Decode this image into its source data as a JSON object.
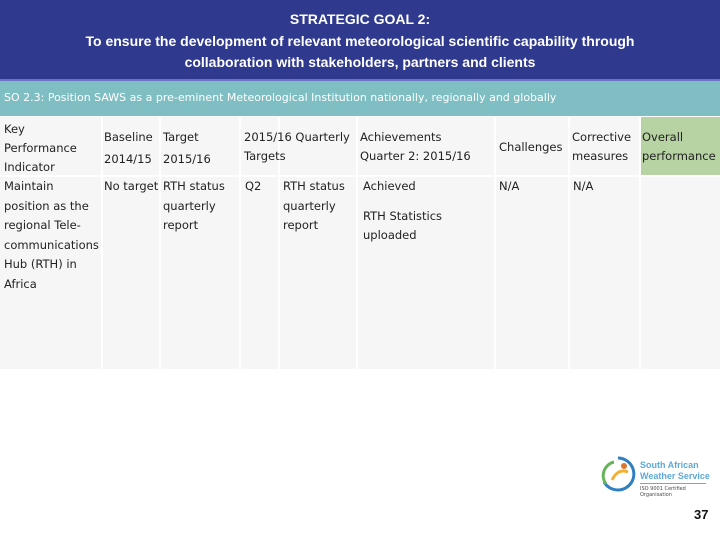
{
  "header": {
    "title_line1": "STRATEGIC GOAL 2:",
    "title_line2": "To ensure the development of relevant meteorological scientific capability through",
    "title_line3": "collaboration with stakeholders, partners and clients"
  },
  "so_bar": {
    "text": "SO 2.3:  Position SAWS as a pre-eminent Meteorological Institution nationally, regionally and globally"
  },
  "table": {
    "headers": {
      "kpi": [
        "Key",
        "Performance",
        "Indicator"
      ],
      "baseline": [
        "Baseline",
        "2014/15"
      ],
      "target": [
        "Target",
        "2015/16"
      ],
      "quarterly_targets": [
        "2015/16 Quarterly",
        "Targets"
      ],
      "achievements": [
        "Achievements",
        "Quarter 2: 2015/16"
      ],
      "challenges": [
        "Challenges"
      ],
      "corrective": [
        "Corrective",
        "measures"
      ],
      "overall": [
        "Overall",
        "performance"
      ]
    },
    "row": {
      "kpi": [
        "Maintain",
        "position as the",
        "regional Tele-",
        "communications",
        "Hub (RTH)  in",
        "Africa"
      ],
      "baseline": [
        "No target"
      ],
      "target": [
        "RTH status",
        "quarterly",
        "report"
      ],
      "quarter": [
        "Q2"
      ],
      "quarterly_target": [
        "RTH status",
        "quarterly",
        "report"
      ],
      "achievement": [
        "Achieved",
        "",
        "RTH Statistics",
        "uploaded"
      ],
      "challenges": [
        "N/A"
      ],
      "corrective": [
        "N/A"
      ],
      "overall": [
        ""
      ]
    }
  },
  "logo": {
    "line1": "South African",
    "line2": "Weather Service",
    "line3": "ISO 9001 Certified Organisation"
  },
  "page_number": "37",
  "colors": {
    "header_bg": "#2f3a8f",
    "so_bar_bg": "#7fbfc4",
    "table_bg": "#f6f6f6",
    "performance_highlight": "#b7d3a3"
  }
}
